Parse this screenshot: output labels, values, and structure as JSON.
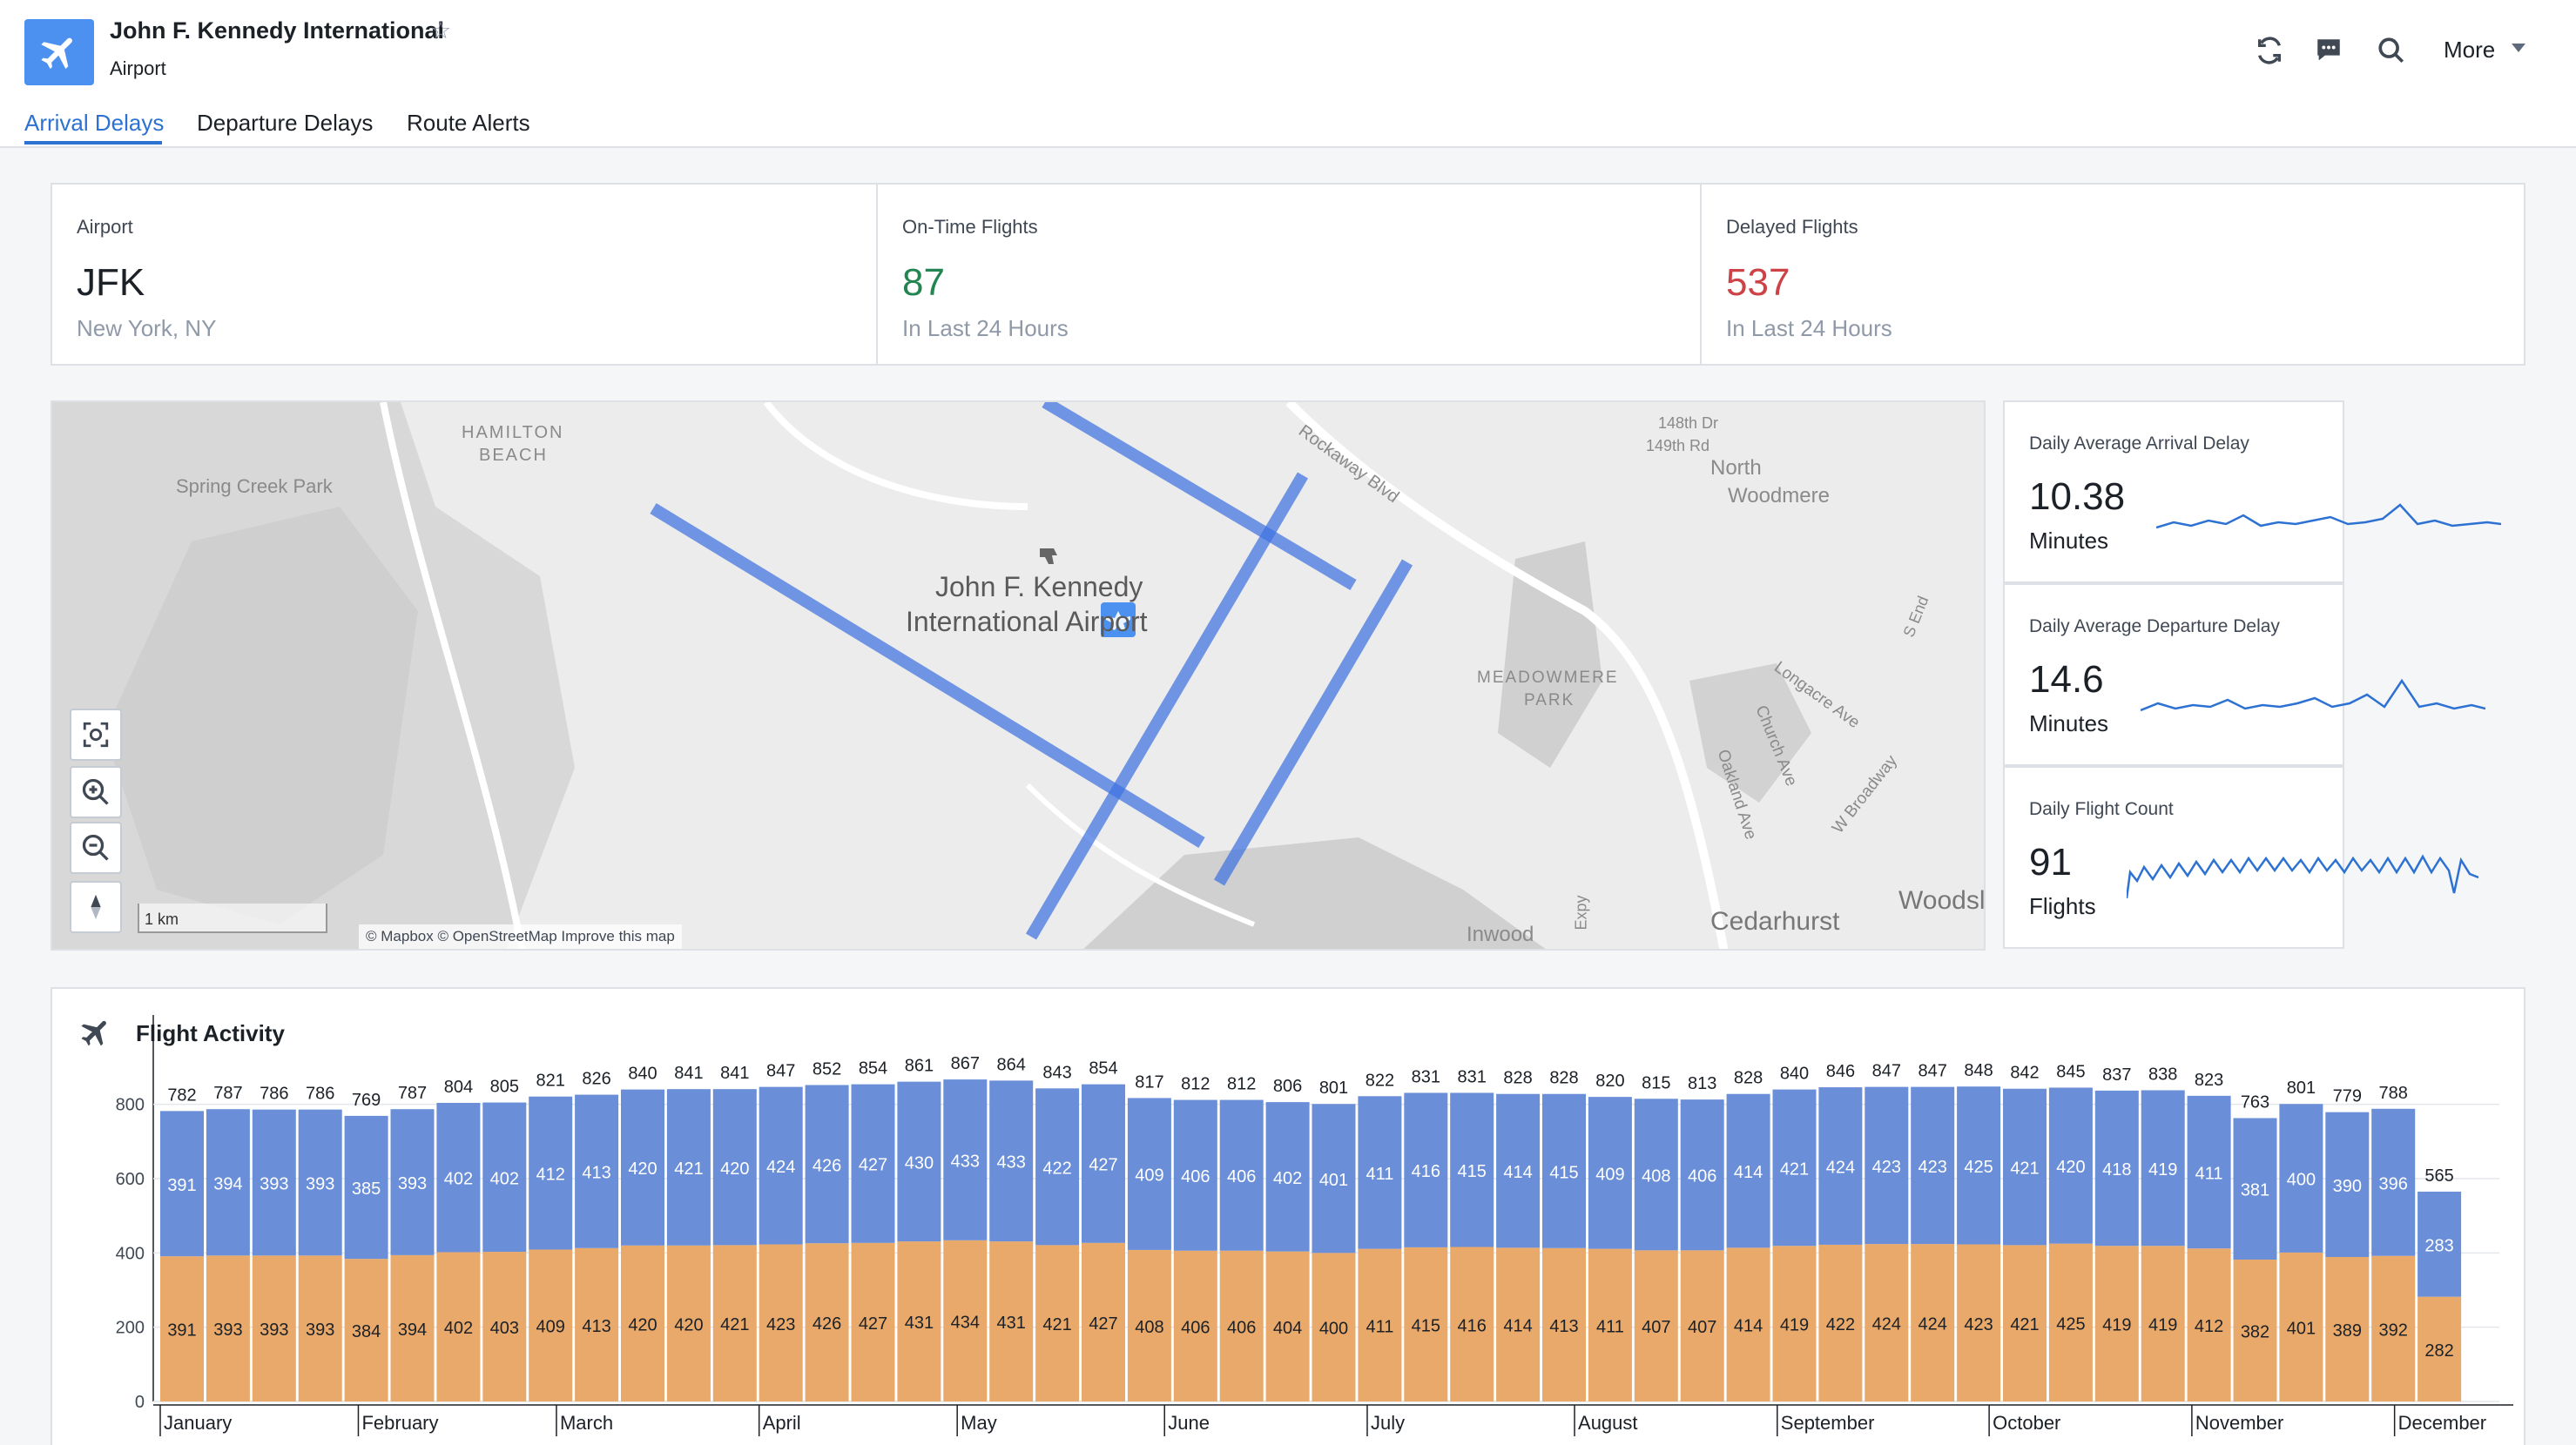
{
  "header": {
    "title": "John F. Kennedy International",
    "subtitle": "Airport",
    "more_label": "More",
    "icons": [
      "refresh-icon",
      "comment-icon",
      "search-icon"
    ]
  },
  "tabs": [
    {
      "label": "Arrival Delays",
      "active": true
    },
    {
      "label": "Departure Delays",
      "active": false
    },
    {
      "label": "Route Alerts",
      "active": false
    }
  ],
  "stats": [
    {
      "label": "Airport",
      "value": "JFK",
      "sub": "New York, NY",
      "color": "#1c2127"
    },
    {
      "label": "On-Time Flights",
      "value": "87",
      "sub": "In Last 24 Hours",
      "color": "#238551"
    },
    {
      "label": "Delayed Flights",
      "value": "537",
      "sub": "In Last 24 Hours",
      "color": "#cd4246"
    }
  ],
  "map": {
    "airport_label_line1": "John F. Kennedy",
    "airport_label_line2": "International Airport",
    "scale_label": "1 km",
    "attribution": "© Mapbox © OpenStreetMap Improve this map",
    "labels": [
      "Spring Creek Park",
      "HAMILTON",
      "BEACH",
      "Rockaway Blvd",
      "148th Dr",
      "149th Rd",
      "North",
      "Woodmere",
      "MEADOWMERE",
      "PARK",
      "Longacre Ave",
      "Church Ave",
      "Oakland Ave",
      "W Broadway",
      "S End",
      "Inwood",
      "Cedarhurst",
      "Woodsl",
      "Expy"
    ]
  },
  "metrics": [
    {
      "label": "Daily Average Arrival Delay",
      "value": "10.38",
      "unit": "Minutes"
    },
    {
      "label": "Daily Average Departure Delay",
      "value": "14.6",
      "unit": "Minutes"
    },
    {
      "label": "Daily Flight Count",
      "value": "91",
      "unit": "Flights"
    }
  ],
  "activity": {
    "title": "Flight Activity"
  },
  "colors": {
    "accent": "#2d72d2",
    "arrivals": "#6a8fd8",
    "departures": "#e8a96a",
    "runway": "#6a8fe0"
  },
  "chart_data": {
    "type": "bar",
    "stacked": true,
    "title": "Flight Activity",
    "ylim": [
      0,
      900
    ],
    "yticks": [
      0,
      200,
      400,
      600,
      800
    ],
    "month_labels": [
      "January",
      "February",
      "March",
      "April",
      "May",
      "June",
      "July",
      "August",
      "September",
      "October",
      "November",
      "December"
    ],
    "totals": [
      782,
      787,
      786,
      786,
      769,
      787,
      804,
      805,
      821,
      826,
      840,
      841,
      841,
      847,
      852,
      854,
      861,
      867,
      864,
      843,
      854,
      817,
      812,
      812,
      806,
      801,
      822,
      831,
      831,
      828,
      828,
      820,
      815,
      813,
      828,
      840,
      846,
      847,
      847,
      848,
      842,
      845,
      837,
      838,
      823,
      763,
      801,
      779,
      788,
      565
    ],
    "series": [
      {
        "values": [
          391,
          394,
          393,
          393,
          385,
          393,
          402,
          402,
          412,
          413,
          420,
          421,
          420,
          424,
          426,
          427,
          430,
          433,
          433,
          422,
          427,
          409,
          406,
          406,
          402,
          401,
          411,
          416,
          415,
          414,
          415,
          409,
          408,
          406,
          414,
          421,
          424,
          423,
          423,
          425,
          421,
          420,
          418,
          419,
          411,
          381,
          400,
          390,
          396,
          283
        ]
      },
      {
        "values": [
          391,
          393,
          393,
          393,
          384,
          394,
          402,
          403,
          409,
          413,
          420,
          420,
          421,
          423,
          426,
          427,
          431,
          434,
          431,
          421,
          427,
          408,
          406,
          406,
          404,
          400,
          411,
          415,
          416,
          414,
          413,
          411,
          407,
          407,
          414,
          419,
          422,
          424,
          424,
          423,
          421,
          425,
          419,
          419,
          412,
          382,
          401,
          389,
          392,
          282
        ]
      }
    ]
  }
}
